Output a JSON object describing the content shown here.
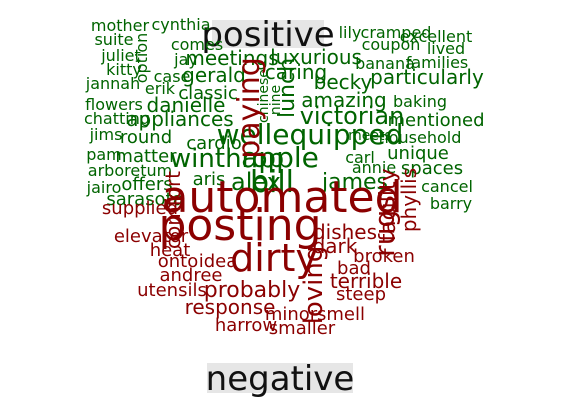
{
  "chart_data": {
    "type": "wordcloud",
    "title": "",
    "xlabel": "",
    "ylabel": "",
    "groups": [
      {
        "name": "positive",
        "color": "#006400"
      },
      {
        "name": "negative",
        "color": "#8b0000"
      }
    ],
    "series": [
      {
        "name": "positive",
        "words": [
          "wellequipped",
          "apple",
          "bill",
          "winthrop",
          "victorian",
          "alex",
          "james",
          "amazing",
          "carl",
          "gerald",
          "becky",
          "particularly",
          "luxurious",
          "meetings",
          "caring",
          "danielle",
          "appliances",
          "classic",
          "cardio",
          "unique",
          "spaces",
          "annie",
          "mentioned",
          "round",
          "matter",
          "offers",
          "sarasota",
          "aris",
          "mother",
          "cynthia",
          "suite",
          "juliet",
          "kitty",
          "jannah",
          "flowers",
          "chatting",
          "jims",
          "pam",
          "arboretum",
          "jairo",
          "comes",
          "jay",
          "lily",
          "cramped",
          "excellent",
          "coupon",
          "lived",
          "banana",
          "families",
          "baking",
          "household",
          "cancel",
          "barry",
          "meets",
          "erik",
          "case",
          "chinese",
          "nine",
          "lunch",
          "option"
        ]
      },
      {
        "name": "negative",
        "words": [
          "automated",
          "posting",
          "dirty",
          "probably",
          "response",
          "terrible",
          "dishes",
          "dark",
          "bad",
          "broken",
          "steep",
          "smell",
          "minor",
          "harrow",
          "smaller",
          "utensils",
          "andree",
          "onto",
          "idea",
          "heat",
          "elevator",
          "supplied",
          "comfort",
          "paying",
          "loving",
          "rugs",
          "facility",
          "phyllis"
        ]
      }
    ]
  }
}
